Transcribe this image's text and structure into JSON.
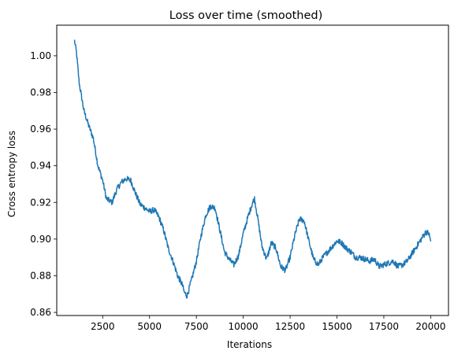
{
  "chart_data": {
    "type": "line",
    "title": "Loss over time (smoothed)",
    "xlabel": "Iterations",
    "ylabel": "Cross entropy loss",
    "xlim": [
      50,
      20950
    ],
    "ylim": [
      0.8583,
      1.0167
    ],
    "xticks": [
      2500,
      5000,
      7500,
      10000,
      12500,
      15000,
      17500,
      20000
    ],
    "xtick_labels": [
      "2500",
      "5000",
      "7500",
      "10000",
      "12500",
      "15000",
      "17500",
      "20000"
    ],
    "yticks": [
      0.86,
      0.88,
      0.9,
      0.92,
      0.94,
      0.96,
      0.98,
      1.0
    ],
    "ytick_labels": [
      "0.86",
      "0.88",
      "0.90",
      "0.92",
      "0.94",
      "0.96",
      "0.98",
      "1.00"
    ],
    "grid": false,
    "series": [
      {
        "name": "loss",
        "color": "#1f77b4",
        "x": [
          1000,
          1100,
          1250,
          1500,
          1750,
          2000,
          2250,
          2500,
          2700,
          3000,
          3250,
          3500,
          3750,
          4000,
          4250,
          4500,
          4750,
          5000,
          5250,
          5500,
          5750,
          6000,
          6250,
          6500,
          6750,
          6850,
          7000,
          7250,
          7500,
          7750,
          8000,
          8250,
          8500,
          8750,
          9000,
          9250,
          9500,
          9750,
          10000,
          10250,
          10500,
          10600,
          10750,
          11000,
          11250,
          11500,
          11750,
          12000,
          12250,
          12500,
          12750,
          13000,
          13250,
          13500,
          13750,
          14000,
          14250,
          14500,
          14750,
          15000,
          15250,
          15500,
          15750,
          16000,
          16250,
          16500,
          16750,
          17000,
          17250,
          17500,
          17750,
          18000,
          18250,
          18500,
          18750,
          19000,
          19250,
          19500,
          19750,
          19900,
          20000
        ],
        "values": [
          1.008,
          1.002,
          0.985,
          0.97,
          0.962,
          0.955,
          0.94,
          0.932,
          0.922,
          0.92,
          0.927,
          0.931,
          0.933,
          0.932,
          0.925,
          0.919,
          0.917,
          0.915,
          0.916,
          0.912,
          0.905,
          0.895,
          0.888,
          0.88,
          0.875,
          0.871,
          0.869,
          0.878,
          0.888,
          0.902,
          0.913,
          0.918,
          0.917,
          0.905,
          0.893,
          0.889,
          0.886,
          0.891,
          0.903,
          0.912,
          0.92,
          0.922,
          0.913,
          0.896,
          0.889,
          0.898,
          0.895,
          0.885,
          0.883,
          0.89,
          0.902,
          0.911,
          0.91,
          0.899,
          0.889,
          0.886,
          0.89,
          0.893,
          0.896,
          0.899,
          0.898,
          0.895,
          0.893,
          0.89,
          0.89,
          0.889,
          0.888,
          0.889,
          0.885,
          0.886,
          0.887,
          0.888,
          0.885,
          0.886,
          0.888,
          0.892,
          0.896,
          0.9,
          0.904,
          0.903,
          0.899
        ]
      }
    ]
  }
}
